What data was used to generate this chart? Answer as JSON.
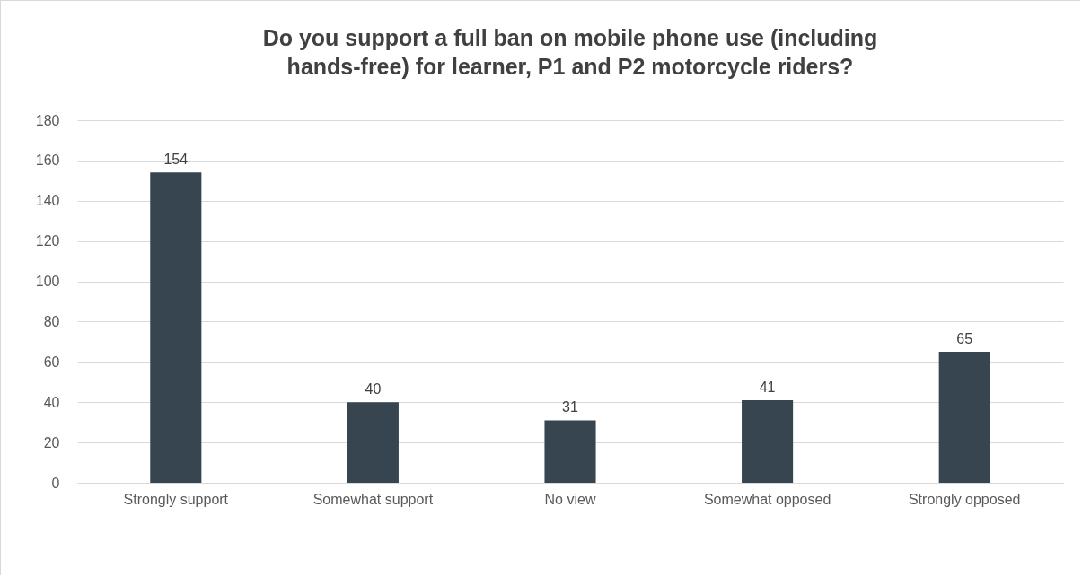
{
  "chart_data": {
    "type": "bar",
    "title": "Do you support a full ban on mobile phone use (including hands-free) for learner, P1 and P2 motorcycle riders?",
    "categories": [
      "Strongly support",
      "Somewhat support",
      "No view",
      "Somewhat opposed",
      "Strongly opposed"
    ],
    "values": [
      154,
      40,
      31,
      41,
      65
    ],
    "color": "#36454f",
    "ylim": [
      0,
      180
    ],
    "yticks": [
      0,
      20,
      40,
      60,
      80,
      100,
      120,
      140,
      160,
      180
    ],
    "grid": "y",
    "data_labels": true
  }
}
